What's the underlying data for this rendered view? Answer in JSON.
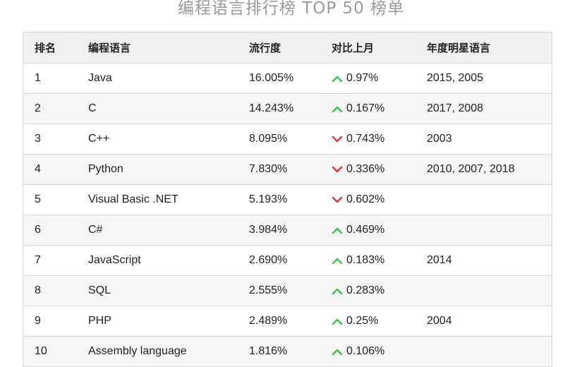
{
  "title": "编程语言排行榜 TOP 50 榜单",
  "colors": {
    "up": "#3cc24a",
    "down": "#d23b3b",
    "header_bg": "#f0f0f0",
    "alt_row_bg": "#f5f5f5"
  },
  "headers": {
    "rank": "排名",
    "language": "编程语言",
    "popularity": "流行度",
    "change": "对比上月",
    "star_years": "年度明星语言"
  },
  "rows": [
    {
      "rank": "1",
      "language": "Java",
      "popularity": "16.005%",
      "direction": "up",
      "change_icon": "arrow-up-icon",
      "change": "0.97%",
      "star_years": "2015, 2005"
    },
    {
      "rank": "2",
      "language": "C",
      "popularity": "14.243%",
      "direction": "up",
      "change_icon": "arrow-up-icon",
      "change": "0.167%",
      "star_years": "2017, 2008"
    },
    {
      "rank": "3",
      "language": "C++",
      "popularity": "8.095%",
      "direction": "down",
      "change_icon": "arrow-down-icon",
      "change": "0.743%",
      "star_years": "2003"
    },
    {
      "rank": "4",
      "language": "Python",
      "popularity": "7.830%",
      "direction": "down",
      "change_icon": "arrow-down-icon",
      "change": "0.336%",
      "star_years": "2010, 2007, 2018"
    },
    {
      "rank": "5",
      "language": "Visual Basic .NET",
      "popularity": "5.193%",
      "direction": "down",
      "change_icon": "arrow-down-icon",
      "change": "0.602%",
      "star_years": ""
    },
    {
      "rank": "6",
      "language": "C#",
      "popularity": "3.984%",
      "direction": "up",
      "change_icon": "arrow-up-icon",
      "change": "0.469%",
      "star_years": ""
    },
    {
      "rank": "7",
      "language": "JavaScript",
      "popularity": "2.690%",
      "direction": "up",
      "change_icon": "arrow-up-icon",
      "change": "0.183%",
      "star_years": "2014"
    },
    {
      "rank": "8",
      "language": "SQL",
      "popularity": "2.555%",
      "direction": "up",
      "change_icon": "arrow-up-icon",
      "change": "0.283%",
      "star_years": ""
    },
    {
      "rank": "9",
      "language": "PHP",
      "popularity": "2.489%",
      "direction": "up",
      "change_icon": "arrow-up-icon",
      "change": "0.25%",
      "star_years": "2004"
    },
    {
      "rank": "10",
      "language": "Assembly language",
      "popularity": "1.816%",
      "direction": "up",
      "change_icon": "arrow-up-icon",
      "change": "0.106%",
      "star_years": ""
    }
  ]
}
